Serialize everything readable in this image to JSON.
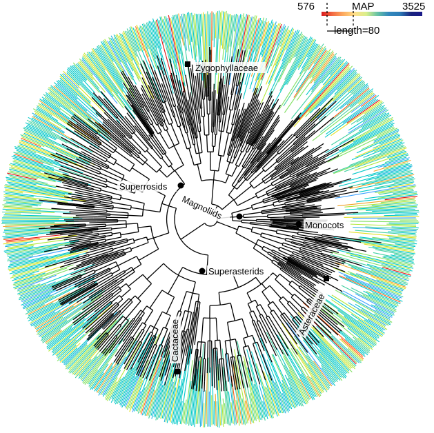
{
  "legend": {
    "min_value": "576",
    "title": "MAP",
    "max_value": "3525",
    "scale_label": "length=80",
    "color_stops": [
      "#d7191c",
      "#f46d43",
      "#fdae61",
      "#fee08b",
      "#d9ef8b",
      "#66c2a5",
      "#3288bd",
      "#2c7bb6",
      "#1a237e",
      "#1a1a8a"
    ]
  },
  "clades": [
    {
      "id": "zygophyllaceae",
      "label": "Zygophyllaceae"
    },
    {
      "id": "superrosids",
      "label": "Superrosids"
    },
    {
      "id": "magnoliids",
      "label": "Magnoliids"
    },
    {
      "id": "monocots",
      "label": "Monocots"
    },
    {
      "id": "superasterids",
      "label": "Superasterids"
    },
    {
      "id": "asteraceae",
      "label": "Asteraceae"
    },
    {
      "id": "cactaceae",
      "label": "Cactaceae"
    }
  ],
  "tip_palette": [
    "#00c8c8",
    "#40d0a0",
    "#7fe060",
    "#b0e83a",
    "#e0e020",
    "#20b0e0",
    "#3aa0ff",
    "#f0a020",
    "#ff5a14",
    "#e01010"
  ]
}
